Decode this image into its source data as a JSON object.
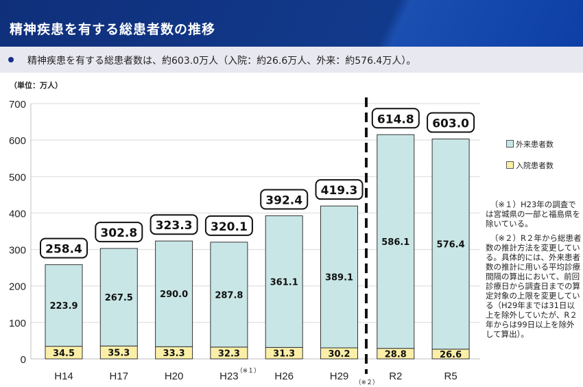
{
  "header": {
    "title": "精神疾患を有する総患者数の推移"
  },
  "summary": {
    "text": "精神疾患を有する総患者数は、約603.0万人（入院：約26.6万人、外来：約576.4万人）。"
  },
  "colors": {
    "outpatient": "#c9e6e6",
    "inpatient": "#fbefa8",
    "header": "#123a8c"
  },
  "chart_data": {
    "type": "bar",
    "stacked": true,
    "unit_label": "（単位：万人）",
    "categories": [
      "H14",
      "H17",
      "H20",
      "H23",
      "H26",
      "H29",
      "R2",
      "R5"
    ],
    "category_notes": {
      "H23": "（※１）",
      "R2": "（※２）"
    },
    "series": [
      {
        "name": "入院患者数",
        "values": [
          34.5,
          35.3,
          33.3,
          32.3,
          31.3,
          30.2,
          28.8,
          26.6
        ]
      },
      {
        "name": "外来患者数",
        "values": [
          223.9,
          267.5,
          290.0,
          287.8,
          361.1,
          389.1,
          586.1,
          576.4
        ]
      }
    ],
    "totals": [
      258.4,
      302.8,
      323.3,
      320.1,
      392.4,
      419.3,
      614.8,
      603.0
    ],
    "ylim": [
      0,
      700
    ],
    "yticks": [
      0,
      100,
      200,
      300,
      400,
      500,
      600,
      700
    ],
    "grid": true,
    "legend_position": "right",
    "method_change_between": [
      "H29",
      "R2"
    ]
  },
  "legend": {
    "outpatient": "外来患者数",
    "inpatient": "入院患者数"
  },
  "notes": [
    "（※１）H23年の調査では宮城県の一部と福島県を除いている。",
    "（※２）R２年から総患者数の推計方法を変更している。具体的には、外来患者数の推計に用いる平均診療間隔の算出において、前回診療日から調査日までの算定対象の上限を変更している（H29年までは31日以上を除外していたが、R２年からは99日以上を除外して算出）。"
  ]
}
